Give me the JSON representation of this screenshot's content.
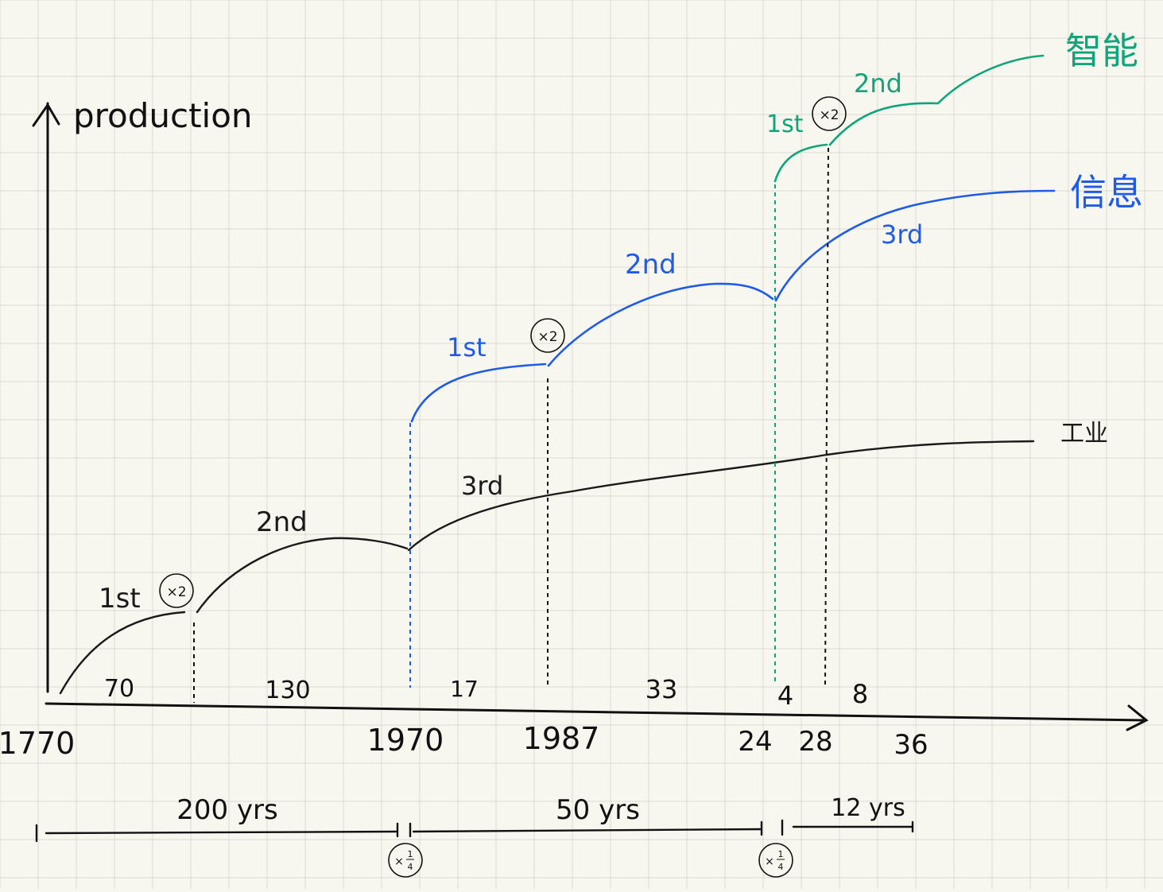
{
  "axis": {
    "y_label": "production"
  },
  "colors": {
    "industrial": "#1a1a1a",
    "information": "#1f5be8",
    "intelligence": "#0fa47a",
    "grid": "#dedcd2",
    "paper": "#f7f6ef"
  },
  "curves": {
    "industrial_label": "工业",
    "information_label": "信息",
    "intelligence_label": "智能"
  },
  "phases": {
    "industrial_1st": "1st",
    "industrial_2nd": "2nd",
    "industrial_3rd": "3rd",
    "information_1st": "1st",
    "information_2nd": "2nd",
    "information_3rd": "3rd",
    "intelligence_1st": "1st",
    "intelligence_2nd": "2nd"
  },
  "markers": {
    "double": "×2",
    "quarter_prefix": "×",
    "quarter_num": "1",
    "quarter_den": "4"
  },
  "durations": [
    "70",
    "130",
    "17",
    "33",
    "4",
    "8"
  ],
  "years": [
    "1770",
    "1970",
    "1987",
    "24",
    "28",
    "36"
  ],
  "spans": [
    "200 yrs",
    "50 yrs",
    "12 yrs"
  ],
  "icons": {
    "axis_arrow": "arrow-icon"
  }
}
